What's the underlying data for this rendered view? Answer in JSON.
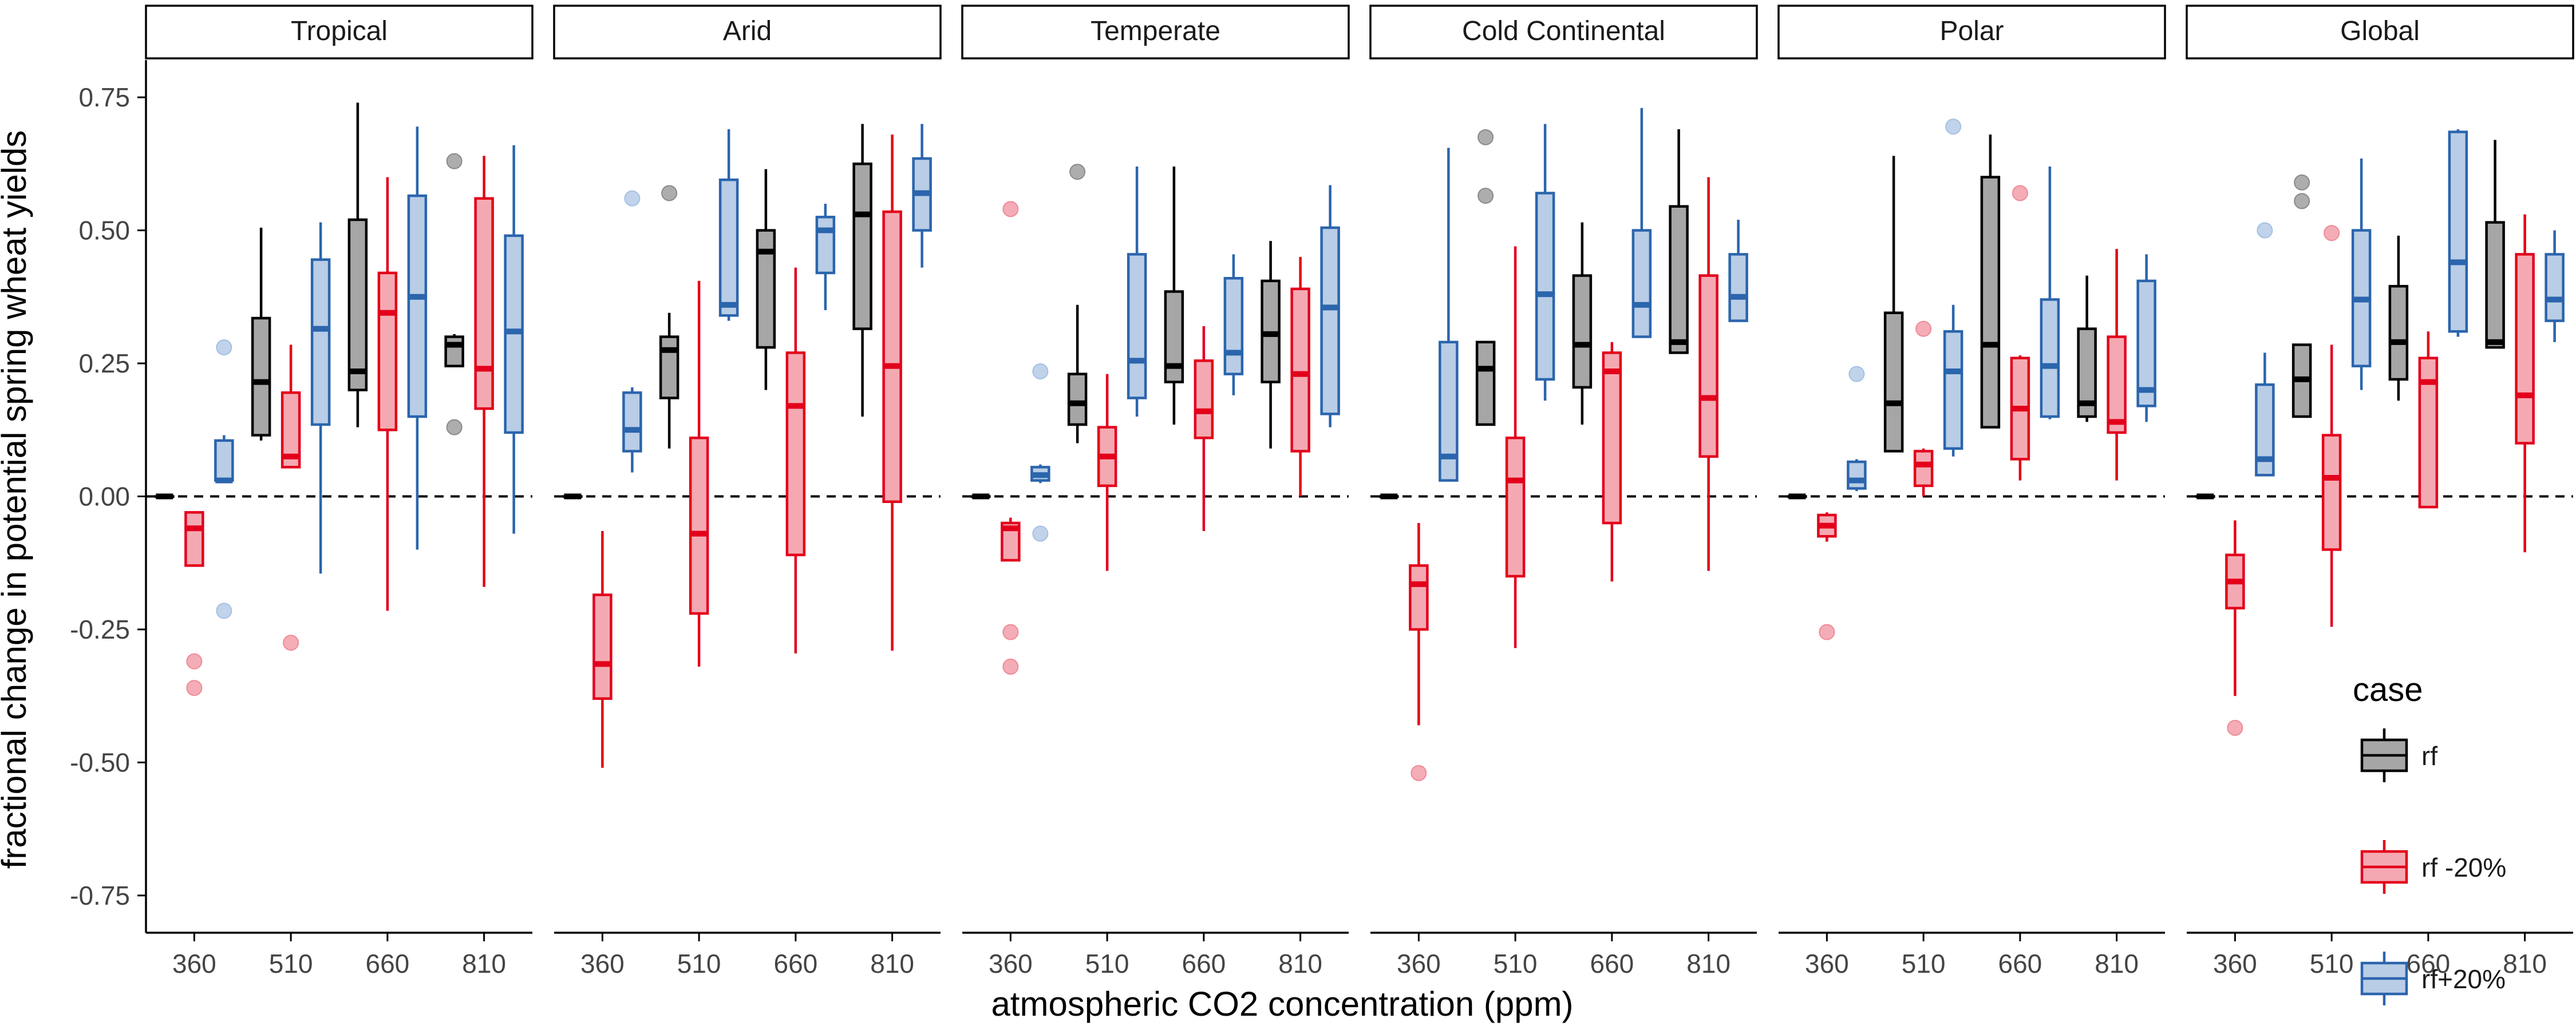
{
  "chart_data": {
    "type": "boxplot",
    "title": "",
    "xlabel": "atmospheric CO2 concentration (ppm)",
    "ylabel": "fractional change in potential spring wheat yields",
    "ylim": [
      -0.82,
      0.82
    ],
    "y_ticks": [
      -0.75,
      -0.5,
      -0.25,
      0.0,
      0.25,
      0.5,
      0.75
    ],
    "y_tick_labels": [
      "-0.75",
      "-0.50",
      "-0.25",
      "0.00",
      "0.25",
      "0.50",
      "0.75"
    ],
    "categories": [
      "360",
      "510",
      "660",
      "810"
    ],
    "reference_line": 0,
    "legend": {
      "title": "case",
      "position": "bottom-right",
      "entries": [
        {
          "label": "rf",
          "fill": "#a6a6a6",
          "stroke": "#000000"
        },
        {
          "label": "rf -20%",
          "fill": "#f4a9b2",
          "stroke": "#e3001b"
        },
        {
          "label": "rf+20%",
          "fill": "#b9cde6",
          "stroke": "#2b65ad"
        }
      ]
    },
    "outlier_colors": {
      "rf": "#8a8a8a",
      "rf -20%": "#ef8a97",
      "rf+20%": "#a5c0e2"
    },
    "panels": [
      {
        "name": "Tropical",
        "boxes": [
          {
            "co2": "360",
            "case": "rf",
            "whislo": 0,
            "q1": 0,
            "med": 0,
            "q3": 0,
            "whishi": 0,
            "outliers": []
          },
          {
            "co2": "360",
            "case": "rf -20%",
            "whislo": -0.13,
            "q1": -0.13,
            "med": -0.06,
            "q3": -0.03,
            "whishi": -0.03,
            "outliers": [
              -0.31,
              -0.36
            ]
          },
          {
            "co2": "360",
            "case": "rf+20%",
            "whislo": 0.03,
            "q1": 0.03,
            "med": 0.03,
            "q3": 0.105,
            "whishi": 0.115,
            "outliers": [
              0.28,
              -0.215
            ]
          },
          {
            "co2": "510",
            "case": "rf",
            "whislo": 0.105,
            "q1": 0.115,
            "med": 0.215,
            "q3": 0.335,
            "whishi": 0.505,
            "outliers": []
          },
          {
            "co2": "510",
            "case": "rf -20%",
            "whislo": 0.055,
            "q1": 0.055,
            "med": 0.075,
            "q3": 0.195,
            "whishi": 0.285,
            "outliers": [
              -0.275
            ]
          },
          {
            "co2": "510",
            "case": "rf+20%",
            "whislo": -0.145,
            "q1": 0.135,
            "med": 0.315,
            "q3": 0.445,
            "whishi": 0.515,
            "outliers": []
          },
          {
            "co2": "660",
            "case": "rf",
            "whislo": 0.13,
            "q1": 0.2,
            "med": 0.235,
            "q3": 0.52,
            "whishi": 0.74,
            "outliers": []
          },
          {
            "co2": "660",
            "case": "rf -20%",
            "whislo": -0.215,
            "q1": 0.125,
            "med": 0.345,
            "q3": 0.42,
            "whishi": 0.6,
            "outliers": []
          },
          {
            "co2": "660",
            "case": "rf+20%",
            "whislo": -0.1,
            "q1": 0.15,
            "med": 0.375,
            "q3": 0.565,
            "whishi": 0.695,
            "outliers": []
          },
          {
            "co2": "810",
            "case": "rf",
            "whislo": 0.245,
            "q1": 0.245,
            "med": 0.285,
            "q3": 0.3,
            "whishi": 0.305,
            "outliers": [
              0.63,
              0.13
            ]
          },
          {
            "co2": "810",
            "case": "rf -20%",
            "whislo": -0.17,
            "q1": 0.165,
            "med": 0.24,
            "q3": 0.56,
            "whishi": 0.64,
            "outliers": []
          },
          {
            "co2": "810",
            "case": "rf+20%",
            "whislo": -0.07,
            "q1": 0.12,
            "med": 0.31,
            "q3": 0.49,
            "whishi": 0.66,
            "outliers": []
          }
        ]
      },
      {
        "name": "Arid",
        "boxes": [
          {
            "co2": "360",
            "case": "rf",
            "whislo": 0,
            "q1": 0,
            "med": 0,
            "q3": 0,
            "whishi": 0,
            "outliers": []
          },
          {
            "co2": "360",
            "case": "rf -20%",
            "whislo": -0.51,
            "q1": -0.38,
            "med": -0.315,
            "q3": -0.185,
            "whishi": -0.065,
            "outliers": []
          },
          {
            "co2": "360",
            "case": "rf+20%",
            "whislo": 0.045,
            "q1": 0.085,
            "med": 0.125,
            "q3": 0.195,
            "whishi": 0.205,
            "outliers": [
              0.56
            ]
          },
          {
            "co2": "510",
            "case": "rf",
            "whislo": 0.09,
            "q1": 0.185,
            "med": 0.275,
            "q3": 0.3,
            "whishi": 0.345,
            "outliers": [
              0.57
            ]
          },
          {
            "co2": "510",
            "case": "rf -20%",
            "whislo": -0.32,
            "q1": -0.22,
            "med": -0.07,
            "q3": 0.11,
            "whishi": 0.405,
            "outliers": []
          },
          {
            "co2": "510",
            "case": "rf+20%",
            "whislo": 0.33,
            "q1": 0.34,
            "med": 0.36,
            "q3": 0.595,
            "whishi": 0.69,
            "outliers": []
          },
          {
            "co2": "660",
            "case": "rf",
            "whislo": 0.2,
            "q1": 0.28,
            "med": 0.46,
            "q3": 0.5,
            "whishi": 0.615,
            "outliers": []
          },
          {
            "co2": "660",
            "case": "rf -20%",
            "whislo": -0.295,
            "q1": -0.11,
            "med": 0.17,
            "q3": 0.27,
            "whishi": 0.43,
            "outliers": []
          },
          {
            "co2": "660",
            "case": "rf+20%",
            "whislo": 0.35,
            "q1": 0.42,
            "med": 0.5,
            "q3": 0.525,
            "whishi": 0.55,
            "outliers": []
          },
          {
            "co2": "810",
            "case": "rf",
            "whislo": 0.15,
            "q1": 0.315,
            "med": 0.53,
            "q3": 0.625,
            "whishi": 0.7,
            "outliers": []
          },
          {
            "co2": "810",
            "case": "rf -20%",
            "whislo": -0.29,
            "q1": -0.01,
            "med": 0.245,
            "q3": 0.535,
            "whishi": 0.68,
            "outliers": []
          },
          {
            "co2": "810",
            "case": "rf+20%",
            "whislo": 0.43,
            "q1": 0.5,
            "med": 0.57,
            "q3": 0.635,
            "whishi": 0.7,
            "outliers": []
          }
        ]
      },
      {
        "name": "Temperate",
        "boxes": [
          {
            "co2": "360",
            "case": "rf",
            "whislo": 0,
            "q1": 0,
            "med": 0,
            "q3": 0,
            "whishi": 0,
            "outliers": []
          },
          {
            "co2": "360",
            "case": "rf -20%",
            "whislo": -0.12,
            "q1": -0.12,
            "med": -0.06,
            "q3": -0.05,
            "whishi": -0.04,
            "outliers": [
              0.54,
              -0.255,
              -0.32
            ]
          },
          {
            "co2": "360",
            "case": "rf+20%",
            "whislo": 0.025,
            "q1": 0.03,
            "med": 0.04,
            "q3": 0.055,
            "whishi": 0.06,
            "outliers": [
              0.235,
              -0.07
            ]
          },
          {
            "co2": "510",
            "case": "rf",
            "whislo": 0.1,
            "q1": 0.135,
            "med": 0.175,
            "q3": 0.23,
            "whishi": 0.36,
            "outliers": [
              0.61
            ]
          },
          {
            "co2": "510",
            "case": "rf -20%",
            "whislo": -0.14,
            "q1": 0.02,
            "med": 0.075,
            "q3": 0.13,
            "whishi": 0.23,
            "outliers": []
          },
          {
            "co2": "510",
            "case": "rf+20%",
            "whislo": 0.15,
            "q1": 0.185,
            "med": 0.255,
            "q3": 0.455,
            "whishi": 0.62,
            "outliers": []
          },
          {
            "co2": "660",
            "case": "rf",
            "whislo": 0.135,
            "q1": 0.215,
            "med": 0.245,
            "q3": 0.385,
            "whishi": 0.62,
            "outliers": []
          },
          {
            "co2": "660",
            "case": "rf -20%",
            "whislo": -0.065,
            "q1": 0.11,
            "med": 0.16,
            "q3": 0.255,
            "whishi": 0.32,
            "outliers": []
          },
          {
            "co2": "660",
            "case": "rf+20%",
            "whislo": 0.19,
            "q1": 0.23,
            "med": 0.27,
            "q3": 0.41,
            "whishi": 0.455,
            "outliers": []
          },
          {
            "co2": "810",
            "case": "rf",
            "whislo": 0.09,
            "q1": 0.215,
            "med": 0.305,
            "q3": 0.405,
            "whishi": 0.48,
            "outliers": []
          },
          {
            "co2": "810",
            "case": "rf -20%",
            "whislo": 0.0,
            "q1": 0.085,
            "med": 0.23,
            "q3": 0.39,
            "whishi": 0.45,
            "outliers": []
          },
          {
            "co2": "810",
            "case": "rf+20%",
            "whislo": 0.13,
            "q1": 0.155,
            "med": 0.355,
            "q3": 0.505,
            "whishi": 0.585,
            "outliers": []
          }
        ]
      },
      {
        "name": "Cold Continental",
        "boxes": [
          {
            "co2": "360",
            "case": "rf",
            "whislo": 0,
            "q1": 0,
            "med": 0,
            "q3": 0,
            "whishi": 0,
            "outliers": []
          },
          {
            "co2": "360",
            "case": "rf -20%",
            "whislo": -0.43,
            "q1": -0.25,
            "med": -0.165,
            "q3": -0.13,
            "whishi": -0.05,
            "outliers": [
              -0.52
            ]
          },
          {
            "co2": "360",
            "case": "rf+20%",
            "whislo": 0.03,
            "q1": 0.03,
            "med": 0.075,
            "q3": 0.29,
            "whishi": 0.655,
            "outliers": []
          },
          {
            "co2": "510",
            "case": "rf",
            "whislo": 0.135,
            "q1": 0.135,
            "med": 0.24,
            "q3": 0.29,
            "whishi": 0.29,
            "outliers": [
              0.675,
              0.565
            ]
          },
          {
            "co2": "510",
            "case": "rf -20%",
            "whislo": -0.285,
            "q1": -0.15,
            "med": 0.03,
            "q3": 0.11,
            "whishi": 0.47,
            "outliers": []
          },
          {
            "co2": "510",
            "case": "rf+20%",
            "whislo": 0.18,
            "q1": 0.22,
            "med": 0.38,
            "q3": 0.57,
            "whishi": 0.7,
            "outliers": []
          },
          {
            "co2": "660",
            "case": "rf",
            "whislo": 0.135,
            "q1": 0.205,
            "med": 0.285,
            "q3": 0.415,
            "whishi": 0.515,
            "outliers": []
          },
          {
            "co2": "660",
            "case": "rf -20%",
            "whislo": -0.16,
            "q1": -0.05,
            "med": 0.235,
            "q3": 0.27,
            "whishi": 0.29,
            "outliers": []
          },
          {
            "co2": "660",
            "case": "rf+20%",
            "whislo": 0.3,
            "q1": 0.3,
            "med": 0.36,
            "q3": 0.5,
            "whishi": 0.73,
            "outliers": []
          },
          {
            "co2": "810",
            "case": "rf",
            "whislo": 0.27,
            "q1": 0.27,
            "med": 0.29,
            "q3": 0.545,
            "whishi": 0.69,
            "outliers": []
          },
          {
            "co2": "810",
            "case": "rf -20%",
            "whislo": -0.14,
            "q1": 0.075,
            "med": 0.185,
            "q3": 0.415,
            "whishi": 0.6,
            "outliers": []
          },
          {
            "co2": "810",
            "case": "rf+20%",
            "whislo": 0.33,
            "q1": 0.33,
            "med": 0.375,
            "q3": 0.455,
            "whishi": 0.52,
            "outliers": []
          }
        ]
      },
      {
        "name": "Polar",
        "boxes": [
          {
            "co2": "360",
            "case": "rf",
            "whislo": 0,
            "q1": 0,
            "med": 0,
            "q3": 0,
            "whishi": 0,
            "outliers": []
          },
          {
            "co2": "360",
            "case": "rf -20%",
            "whislo": -0.085,
            "q1": -0.075,
            "med": -0.055,
            "q3": -0.035,
            "whishi": -0.03,
            "outliers": [
              -0.255
            ]
          },
          {
            "co2": "360",
            "case": "rf+20%",
            "whislo": 0.01,
            "q1": 0.015,
            "med": 0.03,
            "q3": 0.065,
            "whishi": 0.07,
            "outliers": [
              0.23
            ]
          },
          {
            "co2": "510",
            "case": "rf",
            "whislo": 0.085,
            "q1": 0.085,
            "med": 0.175,
            "q3": 0.345,
            "whishi": 0.64,
            "outliers": []
          },
          {
            "co2": "510",
            "case": "rf -20%",
            "whislo": 0.0,
            "q1": 0.02,
            "med": 0.06,
            "q3": 0.085,
            "whishi": 0.09,
            "outliers": [
              0.315
            ]
          },
          {
            "co2": "510",
            "case": "rf+20%",
            "whislo": 0.075,
            "q1": 0.09,
            "med": 0.235,
            "q3": 0.31,
            "whishi": 0.36,
            "outliers": [
              0.695
            ]
          },
          {
            "co2": "660",
            "case": "rf",
            "whislo": 0.13,
            "q1": 0.13,
            "med": 0.285,
            "q3": 0.6,
            "whishi": 0.68,
            "outliers": []
          },
          {
            "co2": "660",
            "case": "rf -20%",
            "whislo": 0.03,
            "q1": 0.07,
            "med": 0.165,
            "q3": 0.26,
            "whishi": 0.265,
            "outliers": [
              0.57
            ]
          },
          {
            "co2": "660",
            "case": "rf+20%",
            "whislo": 0.145,
            "q1": 0.15,
            "med": 0.245,
            "q3": 0.37,
            "whishi": 0.62,
            "outliers": []
          },
          {
            "co2": "810",
            "case": "rf",
            "whislo": 0.14,
            "q1": 0.15,
            "med": 0.175,
            "q3": 0.315,
            "whishi": 0.415,
            "outliers": []
          },
          {
            "co2": "810",
            "case": "rf -20%",
            "whislo": 0.03,
            "q1": 0.12,
            "med": 0.14,
            "q3": 0.3,
            "whishi": 0.465,
            "outliers": []
          },
          {
            "co2": "810",
            "case": "rf+20%",
            "whislo": 0.14,
            "q1": 0.17,
            "med": 0.2,
            "q3": 0.405,
            "whishi": 0.455,
            "outliers": []
          }
        ]
      },
      {
        "name": "Global",
        "boxes": [
          {
            "co2": "360",
            "case": "rf",
            "whislo": 0,
            "q1": 0,
            "med": 0,
            "q3": 0,
            "whishi": 0,
            "outliers": []
          },
          {
            "co2": "360",
            "case": "rf -20%",
            "whislo": -0.375,
            "q1": -0.21,
            "med": -0.16,
            "q3": -0.11,
            "whishi": -0.045,
            "outliers": [
              -0.435
            ]
          },
          {
            "co2": "360",
            "case": "rf+20%",
            "whislo": 0.04,
            "q1": 0.04,
            "med": 0.07,
            "q3": 0.21,
            "whishi": 0.27,
            "outliers": [
              0.5
            ]
          },
          {
            "co2": "510",
            "case": "rf",
            "whislo": 0.15,
            "q1": 0.15,
            "med": 0.22,
            "q3": 0.285,
            "whishi": 0.285,
            "outliers": [
              0.59,
              0.555
            ]
          },
          {
            "co2": "510",
            "case": "rf -20%",
            "whislo": -0.245,
            "q1": -0.1,
            "med": 0.035,
            "q3": 0.115,
            "whishi": 0.285,
            "outliers": [
              0.495
            ]
          },
          {
            "co2": "510",
            "case": "rf+20%",
            "whislo": 0.2,
            "q1": 0.245,
            "med": 0.37,
            "q3": 0.5,
            "whishi": 0.635,
            "outliers": []
          },
          {
            "co2": "660",
            "case": "rf",
            "whislo": 0.18,
            "q1": 0.22,
            "med": 0.29,
            "q3": 0.395,
            "whishi": 0.49,
            "outliers": []
          },
          {
            "co2": "660",
            "case": "rf -20%",
            "whislo": -0.02,
            "q1": -0.02,
            "med": 0.215,
            "q3": 0.26,
            "whishi": 0.31,
            "outliers": []
          },
          {
            "co2": "660",
            "case": "rf+20%",
            "whislo": 0.3,
            "q1": 0.31,
            "med": 0.44,
            "q3": 0.685,
            "whishi": 0.69,
            "outliers": []
          },
          {
            "co2": "810",
            "case": "rf",
            "whislo": 0.28,
            "q1": 0.28,
            "med": 0.29,
            "q3": 0.515,
            "whishi": 0.67,
            "outliers": []
          },
          {
            "co2": "810",
            "case": "rf -20%",
            "whislo": -0.105,
            "q1": 0.1,
            "med": 0.19,
            "q3": 0.455,
            "whishi": 0.53,
            "outliers": []
          },
          {
            "co2": "810",
            "case": "rf+20%",
            "whislo": 0.29,
            "q1": 0.33,
            "med": 0.37,
            "q3": 0.455,
            "whishi": 0.5,
            "outliers": []
          }
        ]
      }
    ]
  }
}
